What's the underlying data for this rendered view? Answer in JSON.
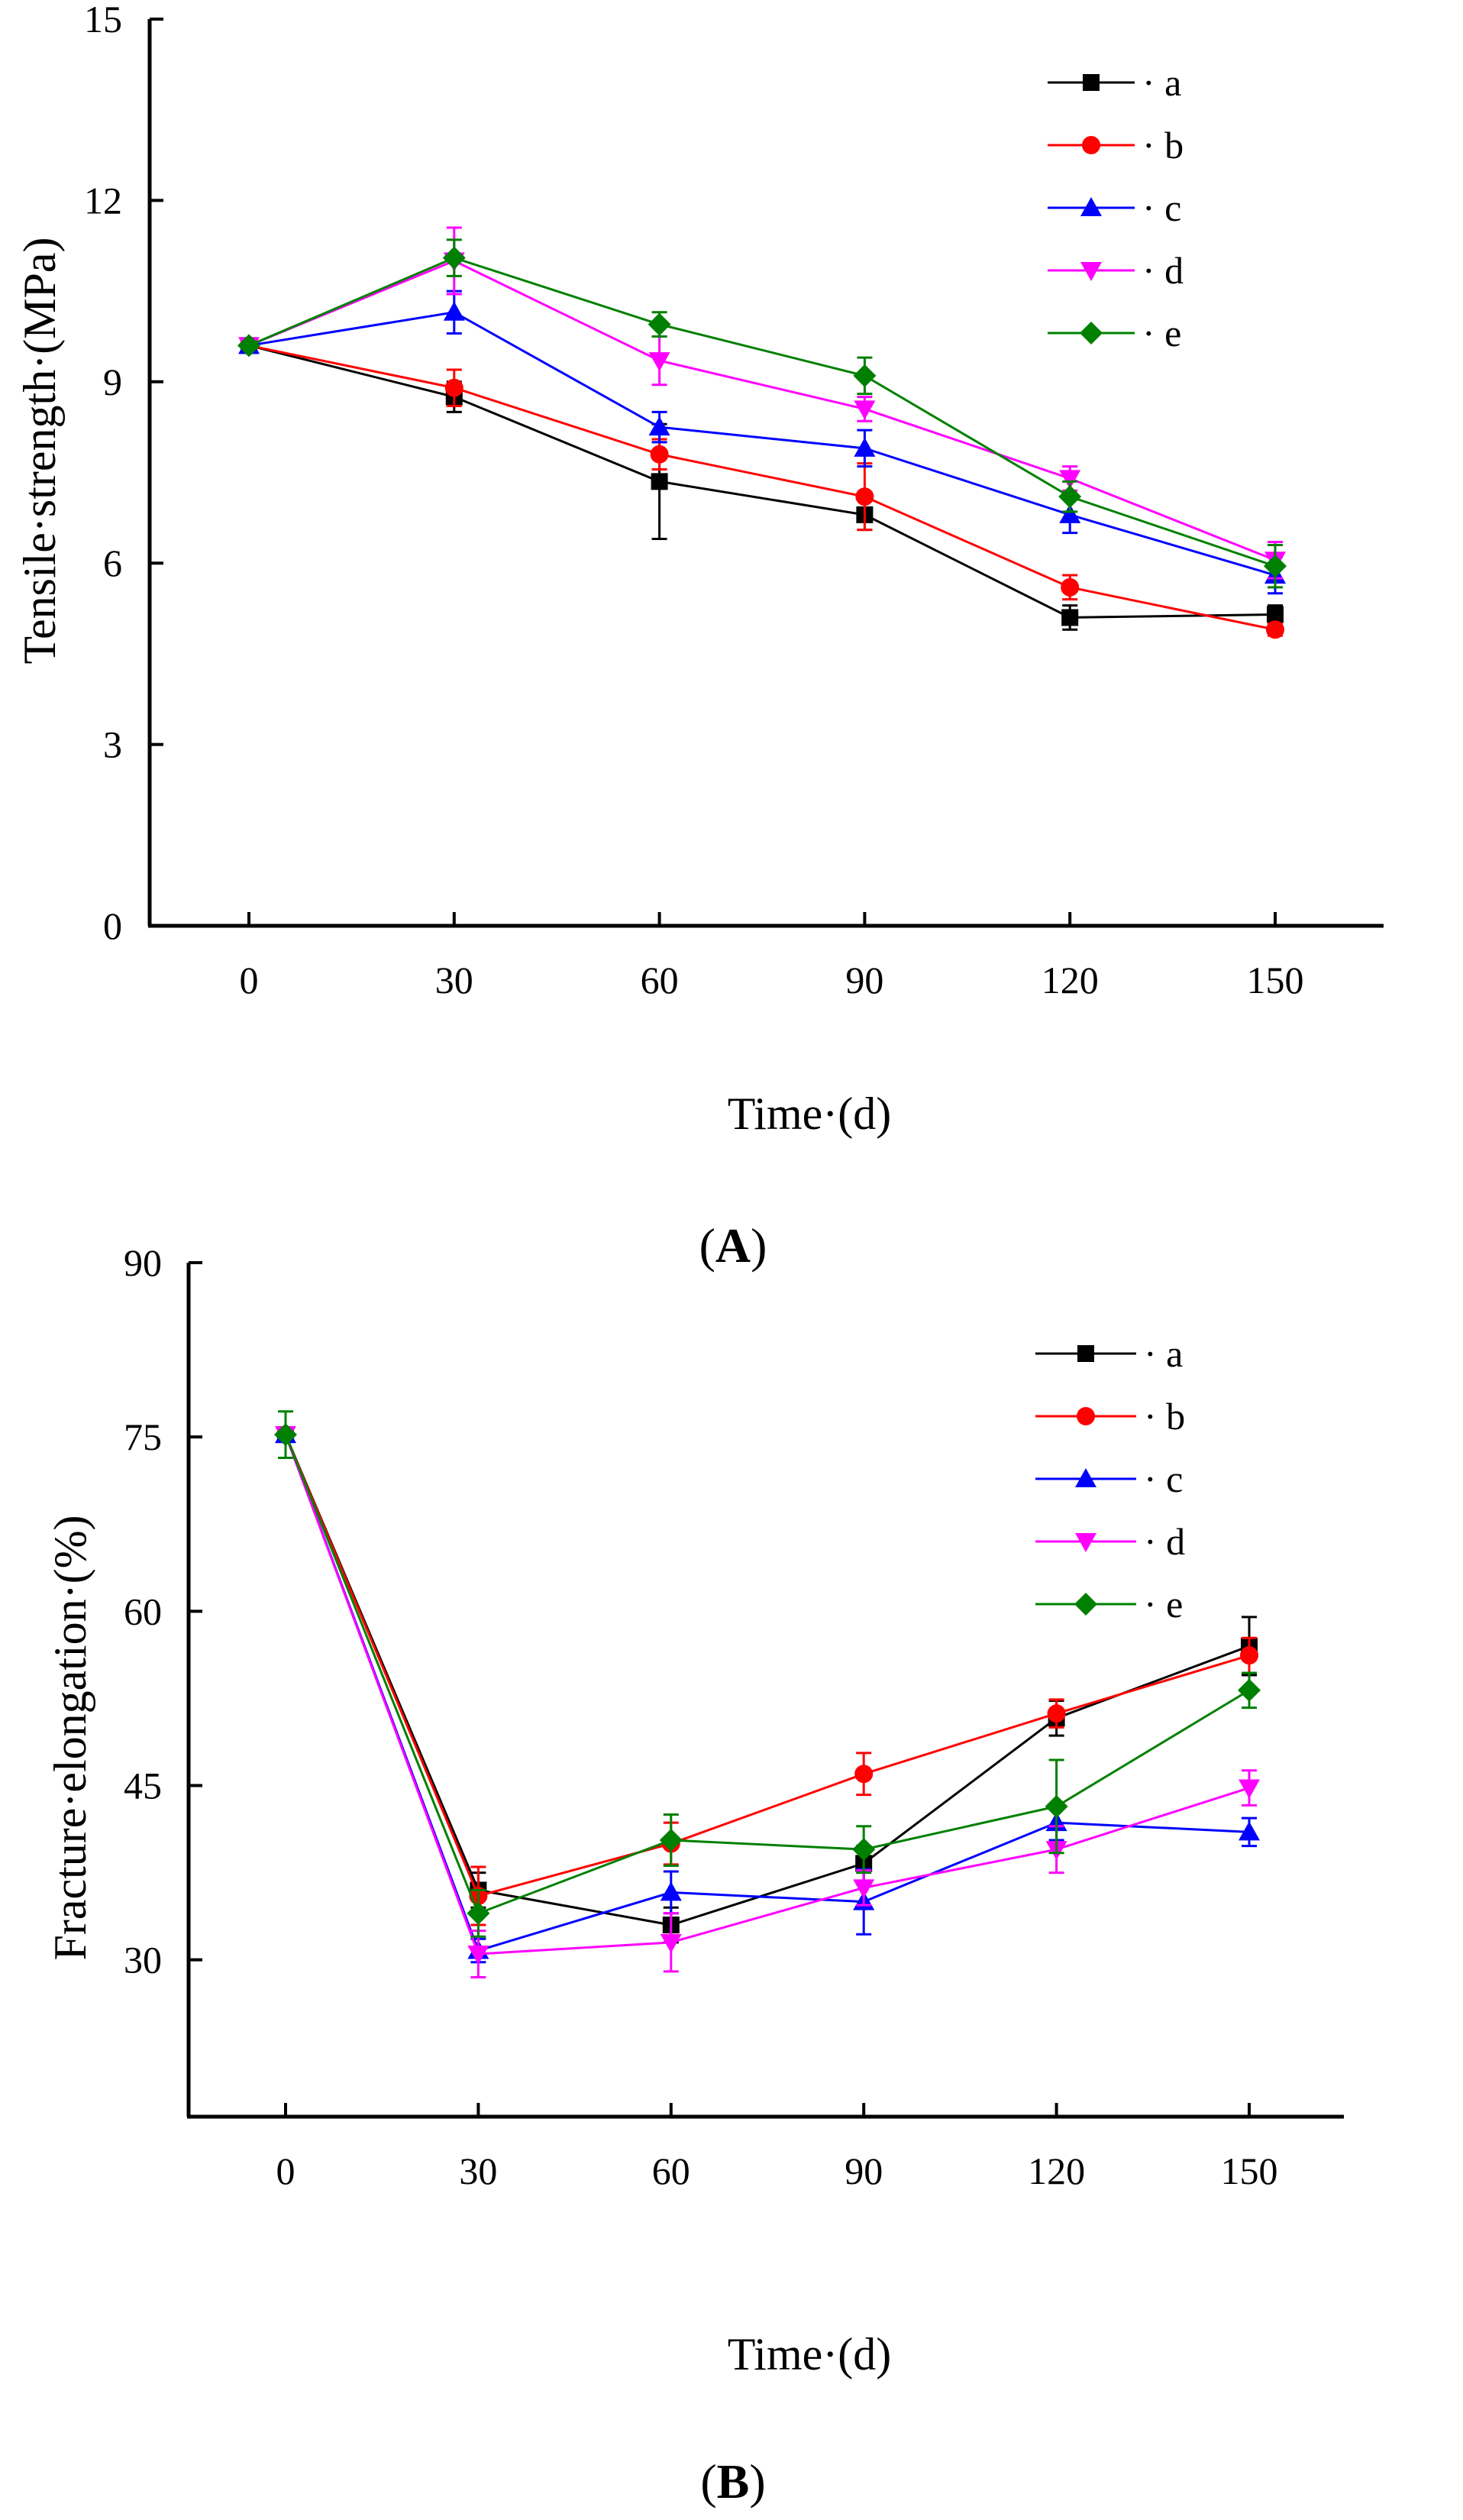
{
  "chart_data": [
    {
      "type": "line",
      "panel_label": "A",
      "ylabel": "Tensile·strength·(MPa)",
      "xlabel": "Time·(d)",
      "x": [
        0,
        30,
        60,
        90,
        120,
        150
      ],
      "x_tick_labels": [
        "0",
        "30",
        "60",
        "90",
        "120",
        "150"
      ],
      "ylim": [
        0,
        15
      ],
      "y_ticks": [
        0,
        3,
        6,
        9,
        12,
        15
      ],
      "y_tick_labels": [
        "0",
        "3",
        "6",
        "9",
        "12",
        "15"
      ],
      "grid": false,
      "legend_position": "top-right",
      "series": [
        {
          "name": "a",
          "legend_label": "· a",
          "color": "#000000",
          "marker": "square",
          "values": [
            9.6,
            8.75,
            7.35,
            6.8,
            5.1,
            5.15
          ],
          "errors": [
            0,
            0.25,
            0.95,
            0.25,
            0.2,
            0.15
          ]
        },
        {
          "name": "b",
          "legend_label": "· b",
          "color": "#ff0000",
          "marker": "circle",
          "values": [
            9.6,
            8.9,
            7.8,
            7.1,
            5.6,
            4.9
          ],
          "errors": [
            0,
            0.3,
            0.25,
            0.55,
            0.2,
            0.1
          ]
        },
        {
          "name": "c",
          "legend_label": "· c",
          "color": "#0000ff",
          "marker": "triangle-up",
          "values": [
            9.6,
            10.15,
            8.25,
            7.9,
            6.8,
            5.8
          ],
          "errors": [
            0,
            0.35,
            0.25,
            0.3,
            0.3,
            0.3
          ]
        },
        {
          "name": "d",
          "legend_label": "· d",
          "color": "#ff00ff",
          "marker": "triangle-down",
          "values": [
            9.6,
            11.0,
            9.35,
            8.55,
            7.4,
            6.05
          ],
          "errors": [
            0,
            0.55,
            0.4,
            0.2,
            0.2,
            0.3
          ]
        },
        {
          "name": "e",
          "legend_label": "· e",
          "color": "#008000",
          "marker": "diamond",
          "values": [
            9.6,
            11.05,
            9.95,
            9.1,
            7.1,
            5.95
          ],
          "errors": [
            0,
            0.3,
            0.2,
            0.3,
            0.25,
            0.35
          ]
        }
      ]
    },
    {
      "type": "line",
      "panel_label": "B",
      "ylabel": "Fracture·elongation·(%)",
      "xlabel": "Time·(d)",
      "x": [
        0,
        30,
        60,
        90,
        120,
        150
      ],
      "x_tick_labels": [
        "0",
        "30",
        "60",
        "90",
        "120",
        "150"
      ],
      "ylim": [
        16.5,
        90
      ],
      "y_ticks": [
        30,
        45,
        60,
        75,
        90
      ],
      "y_tick_labels": [
        "30",
        "45",
        "60",
        "75",
        "90"
      ],
      "grid": false,
      "legend_position": "top-right",
      "series": [
        {
          "name": "a",
          "legend_label": "· a",
          "color": "#000000",
          "marker": "square",
          "values": [
            75.2,
            36.0,
            33.0,
            38.3,
            50.8,
            57.0
          ],
          "errors": [
            0,
            1.5,
            1.5,
            1.5,
            1.5,
            2.5
          ]
        },
        {
          "name": "b",
          "legend_label": "· b",
          "color": "#ff0000",
          "marker": "circle",
          "values": [
            75.2,
            35.5,
            40.0,
            46.0,
            51.2,
            56.2
          ],
          "errors": [
            0,
            2.5,
            1.8,
            1.8,
            1.2,
            1.5
          ]
        },
        {
          "name": "c",
          "legend_label": "· c",
          "color": "#0000ff",
          "marker": "triangle-up",
          "values": [
            75.2,
            30.8,
            35.8,
            35.0,
            41.8,
            41.0
          ],
          "errors": [
            0,
            1.0,
            1.8,
            2.8,
            1.5,
            1.2
          ]
        },
        {
          "name": "d",
          "legend_label": "· d",
          "color": "#ff00ff",
          "marker": "triangle-down",
          "values": [
            75.2,
            30.5,
            31.5,
            36.2,
            39.5,
            44.8
          ],
          "errors": [
            0,
            2.0,
            2.5,
            1.5,
            2.0,
            1.5
          ]
        },
        {
          "name": "e",
          "legend_label": "· e",
          "color": "#008000",
          "marker": "diamond",
          "values": [
            75.2,
            34.0,
            40.3,
            39.5,
            43.2,
            53.2
          ],
          "errors": [
            2.0,
            2.0,
            2.2,
            2.0,
            4.0,
            1.5
          ]
        }
      ]
    }
  ]
}
